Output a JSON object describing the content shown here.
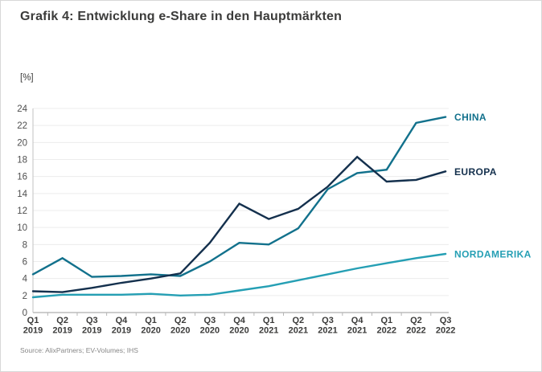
{
  "page": {
    "title": "Grafik 4: Entwicklung e-Share in den Hauptmärkten",
    "source": "Source: AlixPartners; EV-Volumes; IHS"
  },
  "chart_data": {
    "type": "line",
    "title": "Grafik 4: Entwicklung e-Share in den Hauptmärkten",
    "unit_label": "[%]",
    "xlabel": "",
    "ylabel": "[%]",
    "ylim": [
      0,
      24
    ],
    "y_ticks": [
      0,
      2,
      4,
      6,
      8,
      10,
      12,
      14,
      16,
      18,
      20,
      22,
      24
    ],
    "grid": "horizontal",
    "legend_position": "right-end-labels",
    "categories": [
      "Q1 2019",
      "Q2 2019",
      "Q3 2019",
      "Q4 2019",
      "Q1 2020",
      "Q2 2020",
      "Q3 2020",
      "Q4 2020",
      "Q1 2021",
      "Q2 2021",
      "Q3 2021",
      "Q4 2021",
      "Q1 2022",
      "Q2 2022",
      "Q3 2022"
    ],
    "series": [
      {
        "name": "CHINA",
        "color": "#12718c",
        "values": [
          4.5,
          6.4,
          4.2,
          4.3,
          4.5,
          4.3,
          6.0,
          8.2,
          8.0,
          9.9,
          14.5,
          16.4,
          16.8,
          22.3,
          23.0
        ]
      },
      {
        "name": "EUROPA",
        "color": "#14304d",
        "values": [
          2.5,
          2.4,
          2.9,
          3.5,
          4.0,
          4.6,
          8.2,
          12.8,
          11.0,
          12.2,
          14.8,
          18.3,
          15.4,
          15.6,
          16.6
        ]
      },
      {
        "name": "NORDAMERIKA",
        "color": "#259fb4",
        "values": [
          1.8,
          2.1,
          2.1,
          2.1,
          2.2,
          2.0,
          2.1,
          2.6,
          3.1,
          3.8,
          4.5,
          5.2,
          5.8,
          6.4,
          6.9
        ]
      }
    ],
    "axis_colors": {
      "gridline": "#ececec",
      "zero_axis": "#9b9b9b",
      "y_axis": "#c2c2c2",
      "tick": "#b5b5b5"
    }
  }
}
